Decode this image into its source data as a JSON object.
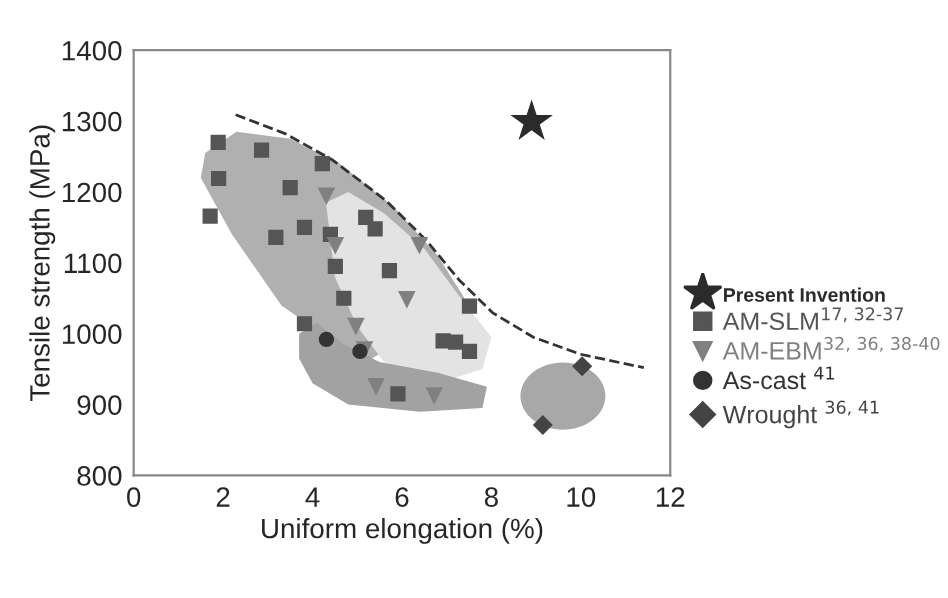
{
  "chart_data": {
    "type": "scatter",
    "xlabel": "Uniform elongation (%)",
    "ylabel": "Tensile strength (MPa)",
    "xlim": [
      0,
      12
    ],
    "xticks": [
      0,
      2,
      4,
      6,
      8,
      10,
      12
    ],
    "ylim": [
      800,
      1400
    ],
    "yticks": [
      800,
      900,
      1000,
      1100,
      1200,
      1300,
      1400
    ],
    "grid": false,
    "legend": "right",
    "series": [
      {
        "name": "Present Invention",
        "color": "#2b2b2b",
        "marker": "star",
        "x": [
          8.9
        ],
        "values": [
          1299
        ]
      },
      {
        "name": "AM-SLM$^{17, 32-37}$",
        "color": "#555555",
        "marker": "square",
        "x": [
          1.89,
          1.9,
          1.71,
          2.86,
          3.5,
          3.18,
          3.82,
          4.22,
          4.4,
          4.51,
          4.7,
          5.19,
          5.4,
          5.72,
          7.51,
          3.82,
          6.92,
          7.2,
          7.51,
          5.91
        ],
        "values": [
          1270,
          1219,
          1166,
          1259,
          1206,
          1136,
          1150,
          1240,
          1140,
          1095,
          1050,
          1164,
          1148,
          1089,
          1039,
          1014,
          990,
          988,
          975,
          915
        ]
      },
      {
        "name": "AM-EBM$^{32, 36, 38-40}$",
        "color": "#808080",
        "marker": "triangle",
        "x": [
          4.31,
          4.51,
          6.39,
          6.11,
          4.97,
          5.16,
          5.42,
          6.72
        ],
        "values": [
          1194,
          1124,
          1124,
          1048,
          1010,
          977,
          925,
          912
        ]
      },
      {
        "name": "As-cast $^{41}$",
        "color": "#333333",
        "marker": "circle",
        "x": [
          4.31,
          5.06
        ],
        "values": [
          992,
          975
        ]
      },
      {
        "name": "Wrought $^{36, 41}$",
        "color": "#444444",
        "marker": "diamond",
        "x": [
          10.03,
          9.15
        ],
        "values": [
          954,
          871
        ]
      },
      {
        "type": "line",
        "color": "#333333",
        "line_style": "dashed",
        "marker": "none",
        "x": [
          2.28,
          3.4,
          4.45,
          5.64,
          6.54,
          7.29,
          8.04,
          8.94,
          9.99,
          11.41
        ],
        "values": [
          1309,
          1282,
          1245,
          1188,
          1132,
          1075,
          1029,
          995,
          971,
          952
        ]
      }
    ]
  }
}
